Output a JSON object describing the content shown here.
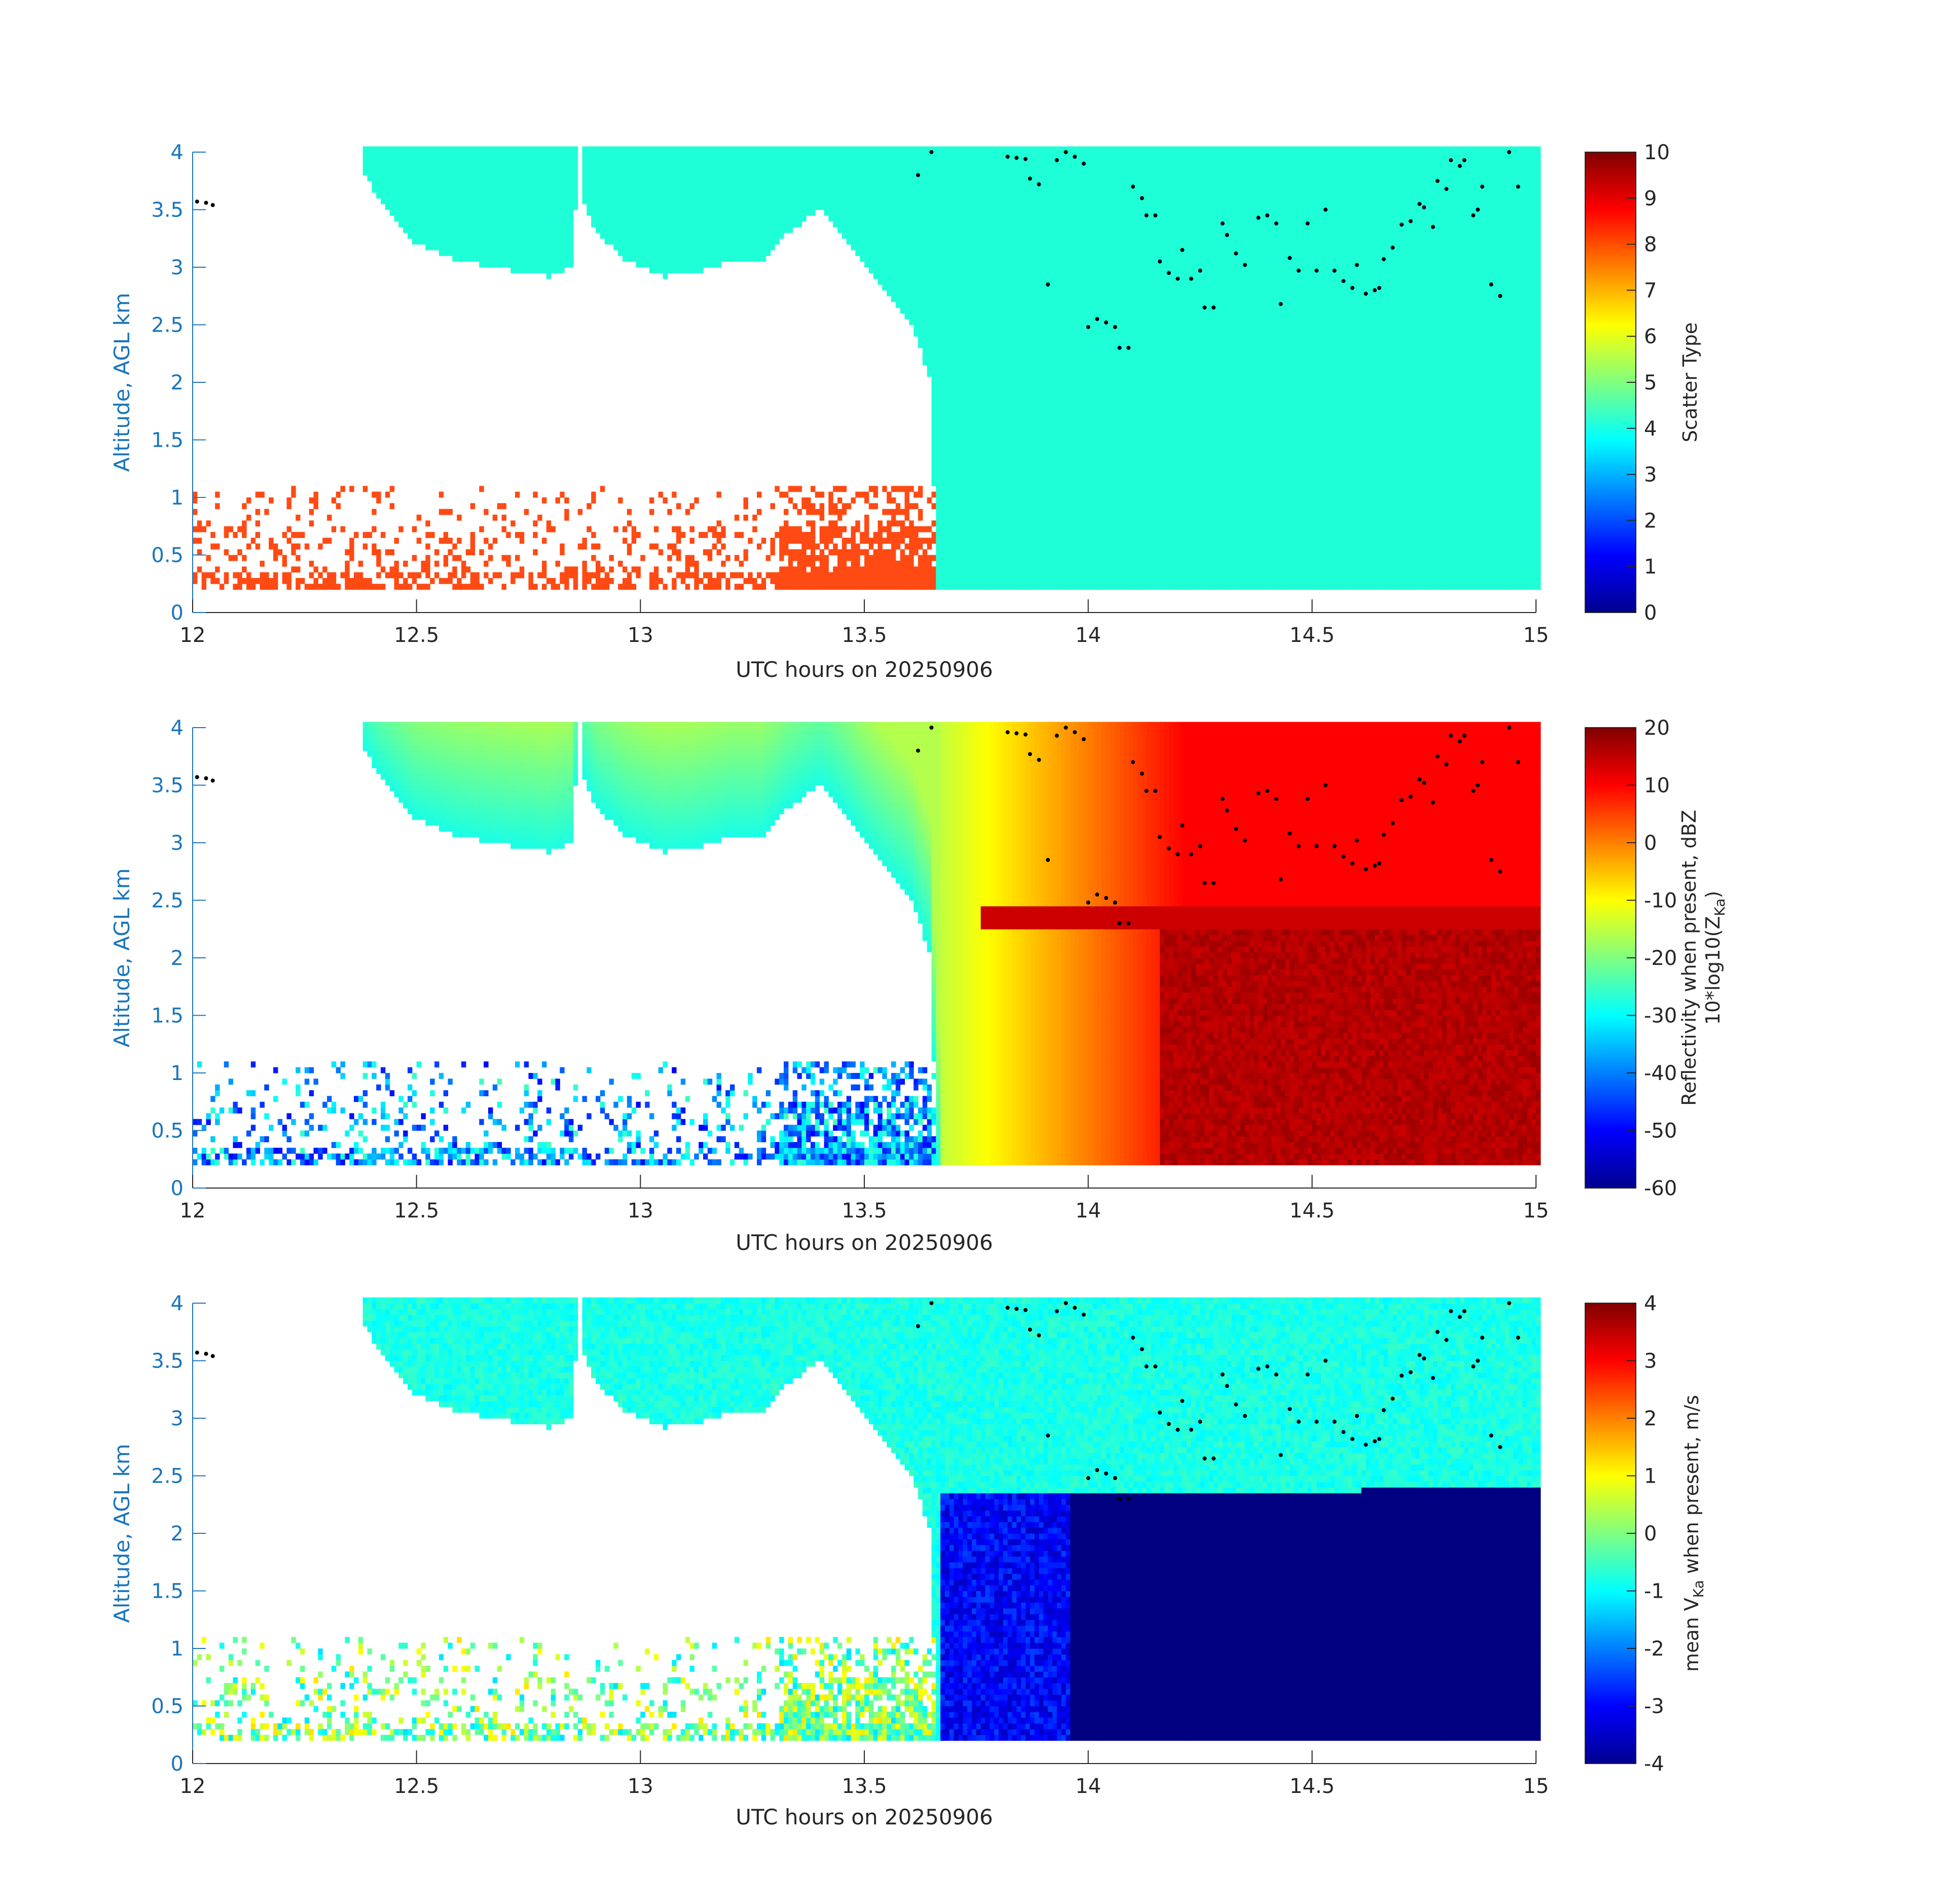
{
  "colors": {
    "ylabel": "#1a75bb",
    "axis": "#262626",
    "scatter_cyan": "#1effd8",
    "scatter_orange": "#ff4a14"
  },
  "chart_data": [
    {
      "type": "heatmap",
      "xlabel": "UTC hours on 20250906",
      "ylabel": "Altitude, AGL km",
      "xlim": [
        12,
        15
      ],
      "ylim": [
        0,
        4
      ],
      "xticks": [
        "12",
        "12.5",
        "13",
        "13.5",
        "14",
        "14.5",
        "15"
      ],
      "yticks": [
        "0",
        "0.5",
        "1",
        "1.5",
        "2",
        "2.5",
        "3",
        "3.5",
        "4"
      ],
      "colorbar": {
        "label": "Scatter Type",
        "range": [
          0,
          10
        ],
        "ticks": [
          "0",
          "1",
          "2",
          "3",
          "4",
          "5",
          "6",
          "7",
          "8",
          "9",
          "10"
        ],
        "colormap": "jet"
      },
      "fields": {
        "upper_cloud_value": 4,
        "low_echo_value": 9
      }
    },
    {
      "type": "heatmap",
      "xlabel": "UTC hours on 20250906",
      "ylabel": "Altitude, AGL km",
      "xlim": [
        12,
        15
      ],
      "ylim": [
        0,
        4
      ],
      "xticks": [
        "12",
        "12.5",
        "13",
        "13.5",
        "14",
        "14.5",
        "15"
      ],
      "yticks": [
        "0",
        "0.5",
        "1",
        "1.5",
        "2",
        "2.5",
        "3",
        "3.5",
        "4"
      ],
      "colorbar": {
        "label_line1": "Reflectivity when present, dBZ",
        "label_line2": "10*log10(Z",
        "label_sub": "Ka",
        "label_end": ")",
        "range": [
          -60,
          20
        ],
        "ticks": [
          "-60",
          "-50",
          "-40",
          "-30",
          "-20",
          "-10",
          "0",
          "10",
          "20"
        ],
        "colormap": "jet"
      },
      "fields": {
        "cloud_top_dbz": -25,
        "melting_layer_km": 2.4,
        "rain_max_dbz": 18,
        "low_echo_dbz": -50
      }
    },
    {
      "type": "heatmap",
      "xlabel": "UTC hours on 20250906",
      "ylabel": "Altitude, AGL km",
      "xlim": [
        12,
        15
      ],
      "ylim": [
        0,
        4
      ],
      "xticks": [
        "12",
        "12.5",
        "13",
        "13.5",
        "14",
        "14.5",
        "15"
      ],
      "yticks": [
        "0",
        "0.5",
        "1",
        "1.5",
        "2",
        "2.5",
        "3",
        "3.5",
        "4"
      ],
      "colorbar": {
        "label_pre": "mean V",
        "label_sub": "Ka",
        "label_post": " when present, m/s",
        "range": [
          -4,
          4
        ],
        "ticks": [
          "-4",
          "-3",
          "-2",
          "-1",
          "0",
          "1",
          "2",
          "3",
          "4"
        ],
        "colormap": "jet"
      },
      "fields": {
        "ice_velocity_ms": -1,
        "rain_velocity_ms": -4,
        "melting_layer_km": 2.4
      }
    }
  ],
  "cloud_base_points": [
    [
      12.01,
      3.57
    ],
    [
      12.03,
      3.56
    ],
    [
      12.045,
      3.54
    ],
    [
      13.62,
      3.8
    ],
    [
      13.65,
      4.0
    ],
    [
      13.82,
      3.96
    ],
    [
      13.84,
      3.95
    ],
    [
      13.86,
      3.94
    ],
    [
      13.87,
      3.77
    ],
    [
      13.89,
      3.72
    ],
    [
      13.91,
      2.85
    ],
    [
      13.93,
      3.93
    ],
    [
      13.95,
      4.0
    ],
    [
      13.97,
      3.96
    ],
    [
      13.99,
      3.9
    ],
    [
      14.0,
      2.48
    ],
    [
      14.02,
      2.55
    ],
    [
      14.04,
      2.52
    ],
    [
      14.06,
      2.48
    ],
    [
      14.07,
      2.3
    ],
    [
      14.09,
      2.3
    ],
    [
      14.1,
      3.7
    ],
    [
      14.12,
      3.6
    ],
    [
      14.13,
      3.45
    ],
    [
      14.15,
      3.45
    ],
    [
      14.16,
      3.05
    ],
    [
      14.18,
      2.95
    ],
    [
      14.2,
      2.9
    ],
    [
      14.21,
      3.15
    ],
    [
      14.23,
      2.9
    ],
    [
      14.25,
      2.97
    ],
    [
      14.26,
      2.65
    ],
    [
      14.28,
      2.65
    ],
    [
      14.3,
      3.38
    ],
    [
      14.31,
      3.28
    ],
    [
      14.33,
      3.12
    ],
    [
      14.35,
      3.02
    ],
    [
      14.38,
      3.43
    ],
    [
      14.4,
      3.45
    ],
    [
      14.42,
      3.38
    ],
    [
      14.43,
      2.68
    ],
    [
      14.45,
      3.08
    ],
    [
      14.47,
      2.97
    ],
    [
      14.49,
      3.38
    ],
    [
      14.51,
      2.97
    ],
    [
      14.53,
      3.5
    ],
    [
      14.55,
      2.97
    ],
    [
      14.57,
      2.88
    ],
    [
      14.59,
      2.82
    ],
    [
      14.6,
      3.02
    ],
    [
      14.62,
      2.77
    ],
    [
      14.64,
      2.8
    ],
    [
      14.65,
      2.82
    ],
    [
      14.66,
      3.07
    ],
    [
      14.68,
      3.17
    ],
    [
      14.7,
      3.37
    ],
    [
      14.72,
      3.4
    ],
    [
      14.74,
      3.55
    ],
    [
      14.75,
      3.52
    ],
    [
      14.77,
      3.35
    ],
    [
      14.78,
      3.75
    ],
    [
      14.8,
      3.68
    ],
    [
      14.81,
      3.93
    ],
    [
      14.83,
      3.88
    ],
    [
      14.84,
      3.93
    ],
    [
      14.86,
      3.45
    ],
    [
      14.87,
      3.5
    ],
    [
      14.88,
      3.7
    ],
    [
      14.9,
      2.85
    ],
    [
      14.92,
      2.75
    ],
    [
      14.94,
      4.0
    ],
    [
      14.96,
      3.7
    ]
  ]
}
